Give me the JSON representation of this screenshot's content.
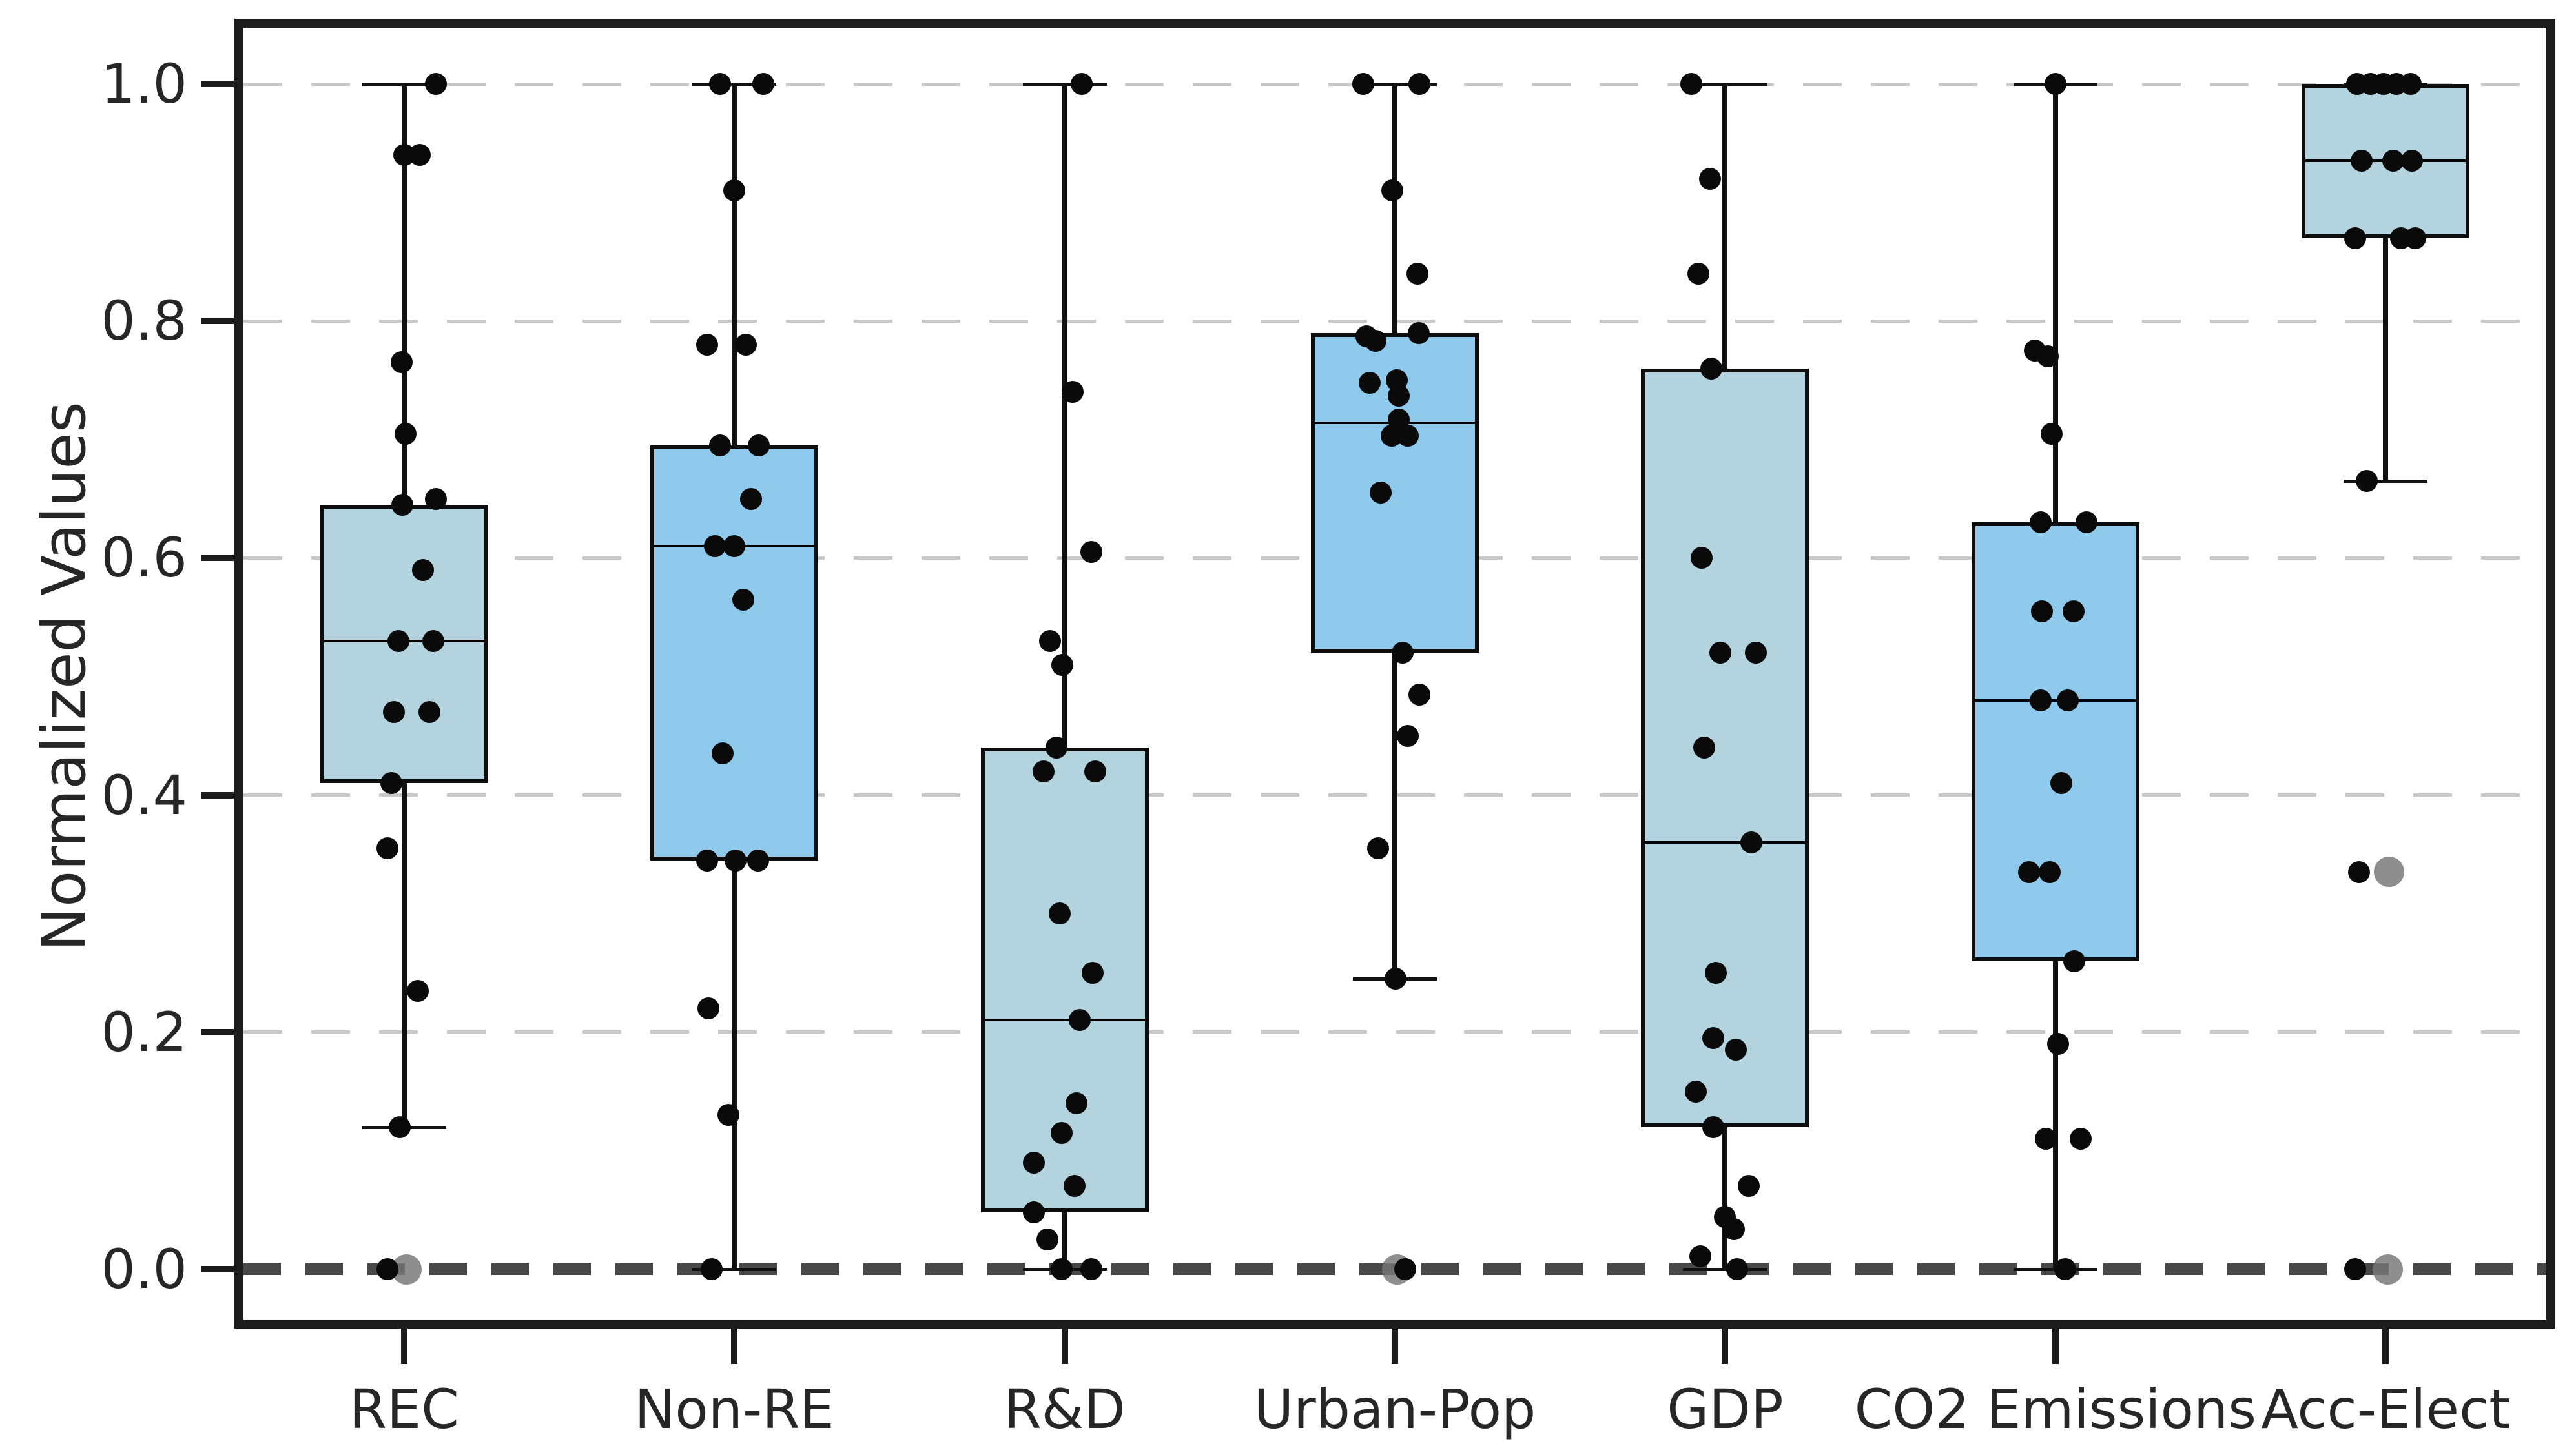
{
  "figure": {
    "ylabel": "Normalized Values",
    "y_tick_labels": [
      "0.0",
      "0.2",
      "0.4",
      "0.6",
      "0.8",
      "1.0"
    ]
  },
  "colors": {
    "background": "#ffffff",
    "spine": "#1c1c1c",
    "grid": "#c9c9c9",
    "zero_line": "#474747",
    "box_edge": "#0d0d0d",
    "median": "#000000",
    "whisker": "#111111",
    "point": "#0a0a0a",
    "highlight_point": "#757575",
    "text": "#262626",
    "fill_light": "#b3d4df",
    "fill_sky": "#8fc9ec"
  },
  "chart_data": {
    "type": "box",
    "title": "",
    "xlabel": "",
    "ylabel": "Normalized Values",
    "ylim": [
      -0.05,
      1.05
    ],
    "y_ticks": [
      0.0,
      0.2,
      0.4,
      0.6,
      0.8,
      1.0
    ],
    "grid": "horizontal dashed gridlines at each y tick",
    "zero_reference_line": "bold dark dashed line at y=0.0",
    "legend_position": "none",
    "point_overlay": "jittered strip plot of raw values; larger gray dots mark highlighted observations",
    "categories": [
      "REC",
      "Non-RE",
      "R&D",
      "Urban-Pop",
      "GDP",
      "CO2 Emissions",
      "Acc-Elect"
    ],
    "series": [
      {
        "label": "REC",
        "fill": "light",
        "whisker_low": 0.12,
        "q1": 0.41,
        "median": 0.53,
        "q3": 0.645,
        "whisker_high": 1.0,
        "points": [
          [
            1.0,
            49
          ],
          [
            0.94,
            0
          ],
          [
            0.94,
            24
          ],
          [
            0.765,
            -4
          ],
          [
            0.705,
            2
          ],
          [
            0.65,
            49
          ],
          [
            0.645,
            -3
          ],
          [
            0.59,
            29
          ],
          [
            0.53,
            -9
          ],
          [
            0.53,
            45
          ],
          [
            0.47,
            -16
          ],
          [
            0.47,
            39
          ],
          [
            0.41,
            -20
          ],
          [
            0.355,
            -26
          ],
          [
            0.235,
            21
          ],
          [
            0.12,
            -7
          ],
          [
            0.0,
            -26
          ]
        ],
        "gray_points": [
          [
            0.0,
            4
          ]
        ]
      },
      {
        "label": "Non-RE",
        "fill": "sky",
        "whisker_low": 0.0,
        "q1": 0.345,
        "median": 0.61,
        "q3": 0.695,
        "whisker_high": 1.0,
        "points": [
          [
            1.0,
            -22
          ],
          [
            1.0,
            45
          ],
          [
            0.91,
            0
          ],
          [
            0.78,
            -42
          ],
          [
            0.78,
            18
          ],
          [
            0.695,
            -22
          ],
          [
            0.695,
            38
          ],
          [
            0.65,
            26
          ],
          [
            0.61,
            -30
          ],
          [
            0.61,
            0
          ],
          [
            0.565,
            14
          ],
          [
            0.435,
            -18
          ],
          [
            0.345,
            -42
          ],
          [
            0.345,
            2
          ],
          [
            0.345,
            37
          ],
          [
            0.22,
            -40
          ],
          [
            0.13,
            -9
          ],
          [
            0.0,
            -35
          ]
        ],
        "gray_points": []
      },
      {
        "label": "R&D",
        "fill": "light",
        "whisker_low": 0.0,
        "q1": 0.048,
        "median": 0.21,
        "q3": 0.44,
        "whisker_high": 1.0,
        "points": [
          [
            1.0,
            26
          ],
          [
            0.74,
            12
          ],
          [
            0.605,
            41
          ],
          [
            0.53,
            -23
          ],
          [
            0.51,
            -4
          ],
          [
            0.44,
            -13
          ],
          [
            0.42,
            -33
          ],
          [
            0.42,
            47
          ],
          [
            0.3,
            -8
          ],
          [
            0.25,
            43
          ],
          [
            0.21,
            23
          ],
          [
            0.14,
            18
          ],
          [
            0.115,
            -5
          ],
          [
            0.09,
            -48
          ],
          [
            0.07,
            15
          ],
          [
            0.048,
            -48
          ],
          [
            0.025,
            -27
          ],
          [
            0.0,
            -5
          ],
          [
            0.0,
            41
          ]
        ],
        "gray_points": []
      },
      {
        "label": "Urban-Pop",
        "fill": "sky",
        "whisker_low": 0.245,
        "q1": 0.52,
        "median": 0.714,
        "q3": 0.79,
        "whisker_high": 1.0,
        "points": [
          [
            1.0,
            -49
          ],
          [
            1.0,
            38
          ],
          [
            0.91,
            -4
          ],
          [
            0.84,
            35
          ],
          [
            0.79,
            37
          ],
          [
            0.787,
            -44
          ],
          [
            0.783,
            -30
          ],
          [
            0.75,
            3
          ],
          [
            0.748,
            -39
          ],
          [
            0.737,
            6
          ],
          [
            0.717,
            6
          ],
          [
            0.703,
            -5
          ],
          [
            0.703,
            20
          ],
          [
            0.655,
            -22
          ],
          [
            0.52,
            12
          ],
          [
            0.485,
            38
          ],
          [
            0.45,
            20
          ],
          [
            0.355,
            -26
          ],
          [
            0.245,
            1
          ],
          [
            0.0,
            16
          ]
        ],
        "gray_points": [
          [
            0.0,
            3
          ]
        ]
      },
      {
        "label": "GDP",
        "fill": "light",
        "whisker_low": 0.0,
        "q1": 0.12,
        "median": 0.36,
        "q3": 0.76,
        "whisker_high": 1.0,
        "points": [
          [
            1.0,
            -52
          ],
          [
            0.92,
            -23
          ],
          [
            0.84,
            -41
          ],
          [
            0.76,
            -21
          ],
          [
            0.6,
            -36
          ],
          [
            0.52,
            -7
          ],
          [
            0.52,
            48
          ],
          [
            0.44,
            -32
          ],
          [
            0.36,
            41
          ],
          [
            0.25,
            -14
          ],
          [
            0.195,
            -18
          ],
          [
            0.185,
            17
          ],
          [
            0.15,
            -45
          ],
          [
            0.12,
            -18
          ],
          [
            0.07,
            37
          ],
          [
            0.044,
            0
          ],
          [
            0.034,
            14
          ],
          [
            0.011,
            -38
          ],
          [
            0.0,
            19
          ]
        ],
        "gray_points": []
      },
      {
        "label": "CO2 Emissions",
        "fill": "sky",
        "whisker_low": 0.0,
        "q1": 0.26,
        "median": 0.48,
        "q3": 0.63,
        "whisker_high": 1.0,
        "points": [
          [
            1.0,
            0
          ],
          [
            0.775,
            -32
          ],
          [
            0.77,
            -12
          ],
          [
            0.705,
            -6
          ],
          [
            0.63,
            -23
          ],
          [
            0.63,
            48
          ],
          [
            0.555,
            -21
          ],
          [
            0.555,
            28
          ],
          [
            0.48,
            -23
          ],
          [
            0.48,
            19
          ],
          [
            0.41,
            9
          ],
          [
            0.335,
            -41
          ],
          [
            0.335,
            -9
          ],
          [
            0.26,
            29
          ],
          [
            0.19,
            4
          ],
          [
            0.11,
            -15
          ],
          [
            0.11,
            39
          ],
          [
            0.0,
            15
          ]
        ],
        "gray_points": []
      },
      {
        "label": "Acc-Elect",
        "fill": "light",
        "whisker_low": 0.665,
        "q1": 0.87,
        "median": 0.935,
        "q3": 1.0,
        "whisker_high": 1.0,
        "points": [
          [
            1.0,
            -44
          ],
          [
            1.0,
            -23
          ],
          [
            1.0,
            -3
          ],
          [
            1.0,
            17
          ],
          [
            1.0,
            39
          ],
          [
            0.935,
            -37
          ],
          [
            0.935,
            12
          ],
          [
            0.935,
            41
          ],
          [
            0.87,
            -47
          ],
          [
            0.87,
            24
          ],
          [
            0.87,
            46
          ],
          [
            0.665,
            -29
          ],
          [
            0.335,
            -41
          ],
          [
            0.0,
            -47
          ]
        ],
        "gray_points": [
          [
            0.335,
            5
          ],
          [
            0.0,
            3
          ]
        ]
      }
    ]
  }
}
